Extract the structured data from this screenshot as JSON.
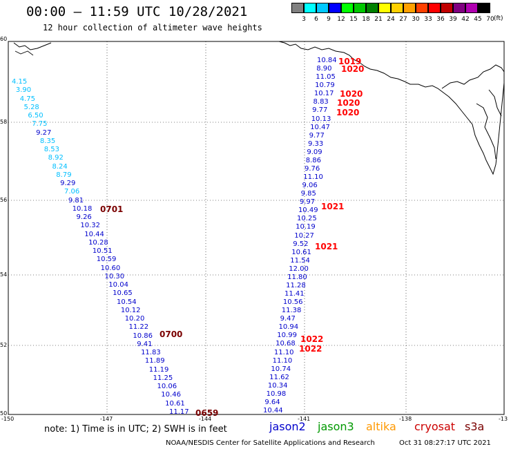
{
  "title": "00:00 — 11:59 UTC 10/28/2021",
  "subtitle": "12 hour collection of altimeter wave heights",
  "colorbar": {
    "unit": "(ft)",
    "labels": [
      "3",
      "6",
      "9",
      "12",
      "15",
      "18",
      "21",
      "24",
      "27",
      "30",
      "33",
      "36",
      "39",
      "42",
      "45",
      "70"
    ],
    "colors": [
      "#808080",
      "#00ffff",
      "#00c8ff",
      "#0000ff",
      "#00ff00",
      "#00c800",
      "#008000",
      "#ffff00",
      "#ffd000",
      "#ffa000",
      "#ff4000",
      "#ff0000",
      "#c00000",
      "#800080",
      "#b000b0",
      "#000000"
    ]
  },
  "axes": {
    "lon_labels": [
      "-150",
      "-147",
      "-144",
      "-141",
      "-138",
      "-13"
    ],
    "lat_labels": [
      "60",
      "58",
      "56",
      "54",
      "52",
      "50"
    ]
  },
  "observations": [
    {
      "v": "4.15",
      "cls": "c",
      "x": 0.0,
      "y": 0.0
    },
    {
      "v": "3.90",
      "cls": "c"
    },
    {
      "v": "4.75",
      "cls": "c"
    },
    {
      "v": "5.28",
      "cls": "c"
    },
    {
      "v": "6.50",
      "cls": "c"
    },
    {
      "v": "7.75",
      "cls": "c"
    },
    {
      "v": "9.27",
      "cls": ""
    },
    {
      "v": "8.35",
      "cls": "c"
    },
    {
      "v": "8.53",
      "cls": "c"
    },
    {
      "v": "8.92",
      "cls": "c"
    },
    {
      "v": "8.24",
      "cls": "c"
    },
    {
      "v": "8.79",
      "cls": "c"
    },
    {
      "v": "9.29",
      "cls": ""
    },
    {
      "v": "7.06",
      "cls": "c"
    },
    {
      "v": "9.81",
      "cls": ""
    },
    {
      "v": "10.18",
      "cls": ""
    },
    {
      "v": "9.26",
      "cls": ""
    },
    {
      "v": "10.32",
      "cls": ""
    },
    {
      "v": "10.44",
      "cls": ""
    },
    {
      "v": "10.28",
      "cls": ""
    },
    {
      "v": "10.51",
      "cls": ""
    },
    {
      "v": "10.59",
      "cls": ""
    },
    {
      "v": "10.60",
      "cls": ""
    },
    {
      "v": "10.30",
      "cls": ""
    },
    {
      "v": "10.04",
      "cls": ""
    },
    {
      "v": "10.65",
      "cls": ""
    },
    {
      "v": "10.54",
      "cls": ""
    },
    {
      "v": "10.12",
      "cls": ""
    },
    {
      "v": "10.20",
      "cls": ""
    },
    {
      "v": "11.22",
      "cls": ""
    },
    {
      "v": "10.86",
      "cls": ""
    },
    {
      "v": "9.41",
      "cls": ""
    },
    {
      "v": "11.83",
      "cls": ""
    },
    {
      "v": "11.89",
      "cls": ""
    },
    {
      "v": "11.19",
      "cls": ""
    },
    {
      "v": "11.25",
      "cls": ""
    },
    {
      "v": "10.06",
      "cls": ""
    },
    {
      "v": "10.46",
      "cls": ""
    },
    {
      "v": "10.61",
      "cls": ""
    },
    {
      "v": "11.17",
      "cls": ""
    }
  ],
  "observations_east": [
    "10.84",
    "8.90",
    "11.05",
    "10.79",
    "10.17",
    "8.83",
    "9.77",
    "10.13",
    "10.47",
    "9.77",
    "9.33",
    "9.09",
    "8.86",
    "9.76",
    "11.10",
    "9.06",
    "9.85",
    "9.97",
    "10.49",
    "10.25",
    "10.19",
    "10.27",
    "9.52",
    "10.61",
    "11.54",
    "12.00",
    "11.80",
    "11.28",
    "11.41",
    "10.56",
    "11.38",
    "9.47",
    "10.94",
    "10.99",
    "10.68",
    "11.10",
    "11.10",
    "10.74",
    "11.62",
    "10.34",
    "10.98",
    "9.64",
    "10.44"
  ],
  "times": [
    "0701",
    "0700",
    "0659",
    "1019",
    "1020",
    "1020",
    "1020",
    "1020",
    "1021",
    "1021",
    "1022",
    "1022"
  ],
  "note": "note: 1) Time is in UTC; 2) SWH is in feet",
  "satellites": [
    {
      "name": "jason2",
      "color": "#0000cc"
    },
    {
      "name": "jason3",
      "color": "#009900"
    },
    {
      "name": "altika",
      "color": "#ff9900"
    },
    {
      "name": "cryosat",
      "color": "#cc0000"
    },
    {
      "name": "s3a",
      "color": "#7a0000"
    }
  ],
  "footer_left": "NOAA/NESDIS Center for Satellite Applications and Research",
  "footer_right": "Oct 31 08:27:17 UTC 2021"
}
